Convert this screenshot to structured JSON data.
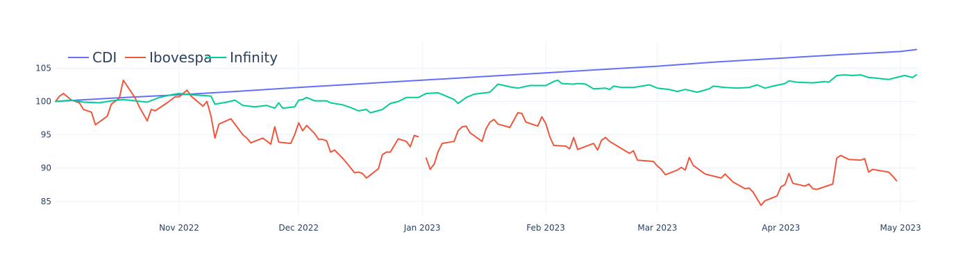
{
  "chart_data": {
    "type": "line",
    "title": "",
    "xlabel": "",
    "ylabel": "",
    "legend_position": "top-left",
    "grid": true,
    "xlim": [
      "2022-10-01",
      "2023-05-05"
    ],
    "ylim": [
      83,
      109
    ],
    "x_ticks": [
      {
        "date": "2022-11-01",
        "label": "Nov 2022"
      },
      {
        "date": "2022-12-01",
        "label": "Dec 2022"
      },
      {
        "date": "2023-01-01",
        "label": "Jan 2023"
      },
      {
        "date": "2023-02-01",
        "label": "Feb 2023"
      },
      {
        "date": "2023-03-01",
        "label": "Mar 2023"
      },
      {
        "date": "2023-04-01",
        "label": "Apr 2023"
      },
      {
        "date": "2023-05-01",
        "label": "May 2023"
      }
    ],
    "y_ticks": [
      {
        "value": 85,
        "label": "85"
      },
      {
        "value": 90,
        "label": "90"
      },
      {
        "value": 95,
        "label": "95"
      },
      {
        "value": 100,
        "label": "100"
      },
      {
        "value": 105,
        "label": "105"
      }
    ],
    "series": [
      {
        "name": "CDI",
        "color": "#636efa",
        "points": [
          [
            "2022-10-01",
            100.0
          ],
          [
            "2022-10-15",
            100.5
          ],
          [
            "2022-11-01",
            101.0
          ],
          [
            "2022-11-15",
            101.5
          ],
          [
            "2022-12-01",
            102.1
          ],
          [
            "2022-12-15",
            102.6
          ],
          [
            "2023-01-01",
            103.2
          ],
          [
            "2023-01-15",
            103.7
          ],
          [
            "2023-02-01",
            104.3
          ],
          [
            "2023-02-15",
            104.8
          ],
          [
            "2023-03-01",
            105.3
          ],
          [
            "2023-03-15",
            105.9
          ],
          [
            "2023-04-01",
            106.5
          ],
          [
            "2023-04-15",
            107.0
          ],
          [
            "2023-05-01",
            107.5
          ],
          [
            "2023-05-05",
            107.8
          ]
        ]
      },
      {
        "name": "Ibovespa",
        "color": "#ef553b",
        "points": [
          [
            "2022-10-01",
            100.0
          ],
          [
            "2022-10-02",
            100.8
          ],
          [
            "2022-10-03",
            101.2
          ],
          [
            "2022-10-05",
            100.2
          ],
          [
            "2022-10-07",
            99.8
          ],
          [
            "2022-10-08",
            98.8
          ],
          [
            "2022-10-10",
            98.4
          ],
          [
            "2022-10-11",
            96.5
          ],
          [
            "2022-10-14",
            97.8
          ],
          [
            "2022-10-15",
            99.6
          ],
          [
            "2022-10-17",
            100.5
          ],
          [
            "2022-10-18",
            103.2
          ],
          [
            "2022-10-21",
            100.5
          ],
          [
            "2022-10-22",
            99.2
          ],
          [
            "2022-10-24",
            97.1
          ],
          [
            "2022-10-25",
            98.8
          ],
          [
            "2022-10-26",
            98.6
          ],
          [
            "2022-10-29",
            99.8
          ],
          [
            "2022-10-31",
            100.7
          ],
          [
            "2022-11-01",
            100.7
          ],
          [
            "2022-11-03",
            101.7
          ],
          [
            "2022-11-04",
            100.8
          ],
          [
            "2022-11-07",
            99.3
          ],
          [
            "2022-11-08",
            100.0
          ],
          [
            "2022-11-09",
            97.8
          ],
          [
            "2022-11-10",
            94.5
          ],
          [
            "2022-11-11",
            96.6
          ],
          [
            "2022-11-14",
            97.4
          ],
          [
            "2022-11-17",
            95.0
          ],
          [
            "2022-11-18",
            94.5
          ],
          [
            "2022-11-19",
            93.8
          ],
          [
            "2022-11-22",
            94.5
          ],
          [
            "2022-11-24",
            93.6
          ],
          [
            "2022-11-25",
            96.2
          ],
          [
            "2022-11-26",
            93.9
          ],
          [
            "2022-11-29",
            93.7
          ],
          [
            "2022-11-30",
            95.0
          ],
          [
            "2022-12-01",
            96.8
          ],
          [
            "2022-12-02",
            95.6
          ],
          [
            "2022-12-03",
            96.4
          ],
          [
            "2022-12-05",
            95.2
          ],
          [
            "2022-12-06",
            94.3
          ],
          [
            "2022-12-07",
            94.3
          ],
          [
            "2022-12-08",
            94.1
          ],
          [
            "2022-12-09",
            92.4
          ],
          [
            "2022-12-10",
            92.7
          ],
          [
            "2022-12-12",
            91.5
          ],
          [
            "2022-12-13",
            90.8
          ],
          [
            "2022-12-15",
            89.3
          ],
          [
            "2022-12-16",
            89.4
          ],
          [
            "2022-12-17",
            89.2
          ],
          [
            "2022-12-18",
            88.5
          ],
          [
            "2022-12-21",
            89.9
          ],
          [
            "2022-12-22",
            92.0
          ],
          [
            "2022-12-23",
            92.4
          ],
          [
            "2022-12-24",
            92.4
          ],
          [
            "2022-12-26",
            94.4
          ],
          [
            "2022-12-28",
            94.0
          ],
          [
            "2022-12-29",
            93.2
          ],
          [
            "2022-12-30",
            94.9
          ],
          [
            "2022-12-31",
            94.7
          ],
          null,
          [
            "2023-01-02",
            91.5
          ],
          [
            "2023-01-03",
            89.8
          ],
          [
            "2023-01-04",
            90.6
          ],
          [
            "2023-01-05",
            92.5
          ],
          [
            "2023-01-06",
            93.7
          ],
          [
            "2023-01-09",
            94.0
          ],
          [
            "2023-01-10",
            95.6
          ],
          [
            "2023-01-11",
            96.2
          ],
          [
            "2023-01-12",
            96.3
          ],
          [
            "2023-01-13",
            95.3
          ],
          [
            "2023-01-16",
            94.0
          ],
          [
            "2023-01-17",
            95.9
          ],
          [
            "2023-01-18",
            96.9
          ],
          [
            "2023-01-19",
            97.3
          ],
          [
            "2023-01-20",
            96.6
          ],
          [
            "2023-01-23",
            96.1
          ],
          [
            "2023-01-25",
            98.3
          ],
          [
            "2023-01-26",
            98.2
          ],
          [
            "2023-01-27",
            96.9
          ],
          [
            "2023-01-30",
            96.3
          ],
          [
            "2023-01-31",
            97.7
          ],
          [
            "2023-02-01",
            96.7
          ],
          [
            "2023-02-02",
            94.7
          ],
          [
            "2023-02-03",
            93.4
          ],
          [
            "2023-02-06",
            93.3
          ],
          [
            "2023-02-07",
            92.9
          ],
          [
            "2023-02-08",
            94.6
          ],
          [
            "2023-02-09",
            92.8
          ],
          [
            "2023-02-13",
            93.7
          ],
          [
            "2023-02-14",
            92.7
          ],
          [
            "2023-02-15",
            94.2
          ],
          [
            "2023-02-16",
            94.6
          ],
          [
            "2023-02-17",
            94.0
          ],
          [
            "2023-02-22",
            92.2
          ],
          [
            "2023-02-23",
            92.6
          ],
          [
            "2023-02-24",
            91.2
          ],
          [
            "2023-02-28",
            91.0
          ],
          [
            "2023-03-01",
            90.3
          ],
          [
            "2023-03-02",
            89.8
          ],
          [
            "2023-03-03",
            89.0
          ],
          [
            "2023-03-06",
            89.7
          ],
          [
            "2023-03-07",
            90.1
          ],
          [
            "2023-03-08",
            89.7
          ],
          [
            "2023-03-09",
            91.6
          ],
          [
            "2023-03-10",
            90.4
          ],
          [
            "2023-03-13",
            89.1
          ],
          [
            "2023-03-17",
            88.5
          ],
          [
            "2023-03-18",
            89.1
          ],
          [
            "2023-03-20",
            87.9
          ],
          [
            "2023-03-23",
            86.9
          ],
          [
            "2023-03-24",
            87.0
          ],
          [
            "2023-03-25",
            86.4
          ],
          [
            "2023-03-27",
            84.4
          ],
          [
            "2023-03-28",
            85.1
          ],
          [
            "2023-03-31",
            85.8
          ],
          [
            "2023-04-01",
            87.2
          ],
          [
            "2023-04-02",
            87.5
          ],
          [
            "2023-04-03",
            89.2
          ],
          [
            "2023-04-04",
            87.7
          ],
          [
            "2023-04-07",
            87.3
          ],
          [
            "2023-04-08",
            87.6
          ],
          [
            "2023-04-09",
            86.9
          ],
          [
            "2023-04-10",
            86.8
          ],
          [
            "2023-04-14",
            87.6
          ],
          [
            "2023-04-15",
            91.5
          ],
          [
            "2023-04-16",
            91.9
          ],
          [
            "2023-04-17",
            91.6
          ],
          [
            "2023-04-18",
            91.3
          ],
          [
            "2023-04-21",
            91.2
          ],
          [
            "2023-04-22",
            91.4
          ],
          [
            "2023-04-23",
            89.4
          ],
          [
            "2023-04-24",
            89.8
          ],
          [
            "2023-04-28",
            89.4
          ],
          [
            "2023-04-29",
            88.8
          ],
          [
            "2023-04-30",
            88.1
          ]
        ]
      },
      {
        "name": "Infinity",
        "color": "#00cc96",
        "points": [
          [
            "2022-10-01",
            100.0
          ],
          [
            "2022-10-05",
            100.2
          ],
          [
            "2022-10-08",
            99.9
          ],
          [
            "2022-10-12",
            99.8
          ],
          [
            "2022-10-15",
            100.1
          ],
          [
            "2022-10-18",
            100.3
          ],
          [
            "2022-10-21",
            100.1
          ],
          [
            "2022-10-24",
            99.9
          ],
          [
            "2022-10-27",
            100.6
          ],
          [
            "2022-10-30",
            101.0
          ],
          [
            "2022-11-01",
            101.2
          ],
          [
            "2022-11-04",
            101.0
          ],
          [
            "2022-11-07",
            100.9
          ],
          [
            "2022-11-09",
            100.8
          ],
          [
            "2022-11-10",
            99.6
          ],
          [
            "2022-11-13",
            99.9
          ],
          [
            "2022-11-15",
            100.2
          ],
          [
            "2022-11-17",
            99.4
          ],
          [
            "2022-11-20",
            99.2
          ],
          [
            "2022-11-23",
            99.4
          ],
          [
            "2022-11-25",
            99.0
          ],
          [
            "2022-11-26",
            99.8
          ],
          [
            "2022-11-27",
            99.0
          ],
          [
            "2022-11-30",
            99.2
          ],
          [
            "2022-12-01",
            100.2
          ],
          [
            "2022-12-02",
            100.3
          ],
          [
            "2022-12-03",
            100.6
          ],
          [
            "2022-12-05",
            100.1
          ],
          [
            "2022-12-08",
            100.1
          ],
          [
            "2022-12-09",
            99.8
          ],
          [
            "2022-12-12",
            99.5
          ],
          [
            "2022-12-14",
            99.1
          ],
          [
            "2022-12-16",
            98.6
          ],
          [
            "2022-12-18",
            98.8
          ],
          [
            "2022-12-19",
            98.3
          ],
          [
            "2022-12-22",
            98.8
          ],
          [
            "2022-12-24",
            99.7
          ],
          [
            "2022-12-26",
            100.0
          ],
          [
            "2022-12-28",
            100.6
          ],
          [
            "2022-12-31",
            100.6
          ],
          [
            "2023-01-02",
            101.2
          ],
          [
            "2023-01-05",
            101.3
          ],
          [
            "2023-01-07",
            100.8
          ],
          [
            "2023-01-09",
            100.3
          ],
          [
            "2023-01-10",
            99.7
          ],
          [
            "2023-01-12",
            100.6
          ],
          [
            "2023-01-14",
            101.1
          ],
          [
            "2023-01-18",
            101.4
          ],
          [
            "2023-01-20",
            102.6
          ],
          [
            "2023-01-23",
            102.2
          ],
          [
            "2023-01-25",
            102.0
          ],
          [
            "2023-01-28",
            102.4
          ],
          [
            "2023-02-01",
            102.4
          ],
          [
            "2023-02-03",
            103.0
          ],
          [
            "2023-02-04",
            103.2
          ],
          [
            "2023-02-05",
            102.7
          ],
          [
            "2023-02-08",
            102.6
          ],
          [
            "2023-02-09",
            102.7
          ],
          [
            "2023-02-11",
            102.6
          ],
          [
            "2023-02-13",
            101.9
          ],
          [
            "2023-02-16",
            102.0
          ],
          [
            "2023-02-17",
            101.8
          ],
          [
            "2023-02-18",
            102.3
          ],
          [
            "2023-02-20",
            102.1
          ],
          [
            "2023-02-23",
            102.1
          ],
          [
            "2023-02-25",
            102.3
          ],
          [
            "2023-02-27",
            102.5
          ],
          [
            "2023-03-01",
            102.0
          ],
          [
            "2023-03-04",
            101.8
          ],
          [
            "2023-03-06",
            101.5
          ],
          [
            "2023-03-08",
            101.8
          ],
          [
            "2023-03-11",
            101.4
          ],
          [
            "2023-03-14",
            101.9
          ],
          [
            "2023-03-15",
            102.3
          ],
          [
            "2023-03-18",
            102.1
          ],
          [
            "2023-03-21",
            102.0
          ],
          [
            "2023-03-24",
            102.1
          ],
          [
            "2023-03-26",
            102.5
          ],
          [
            "2023-03-28",
            102.0
          ],
          [
            "2023-03-30",
            102.3
          ],
          [
            "2023-04-02",
            102.7
          ],
          [
            "2023-04-03",
            103.1
          ],
          [
            "2023-04-05",
            102.9
          ],
          [
            "2023-04-09",
            102.8
          ],
          [
            "2023-04-12",
            103.0
          ],
          [
            "2023-04-13",
            102.9
          ],
          [
            "2023-04-15",
            103.9
          ],
          [
            "2023-04-17",
            104.0
          ],
          [
            "2023-04-19",
            103.9
          ],
          [
            "2023-04-21",
            104.0
          ],
          [
            "2023-04-23",
            103.6
          ],
          [
            "2023-04-25",
            103.5
          ],
          [
            "2023-04-28",
            103.3
          ],
          [
            "2023-04-30",
            103.6
          ],
          [
            "2023-05-02",
            103.9
          ],
          [
            "2023-05-04",
            103.6
          ],
          [
            "2023-05-05",
            104.0
          ]
        ]
      }
    ]
  }
}
